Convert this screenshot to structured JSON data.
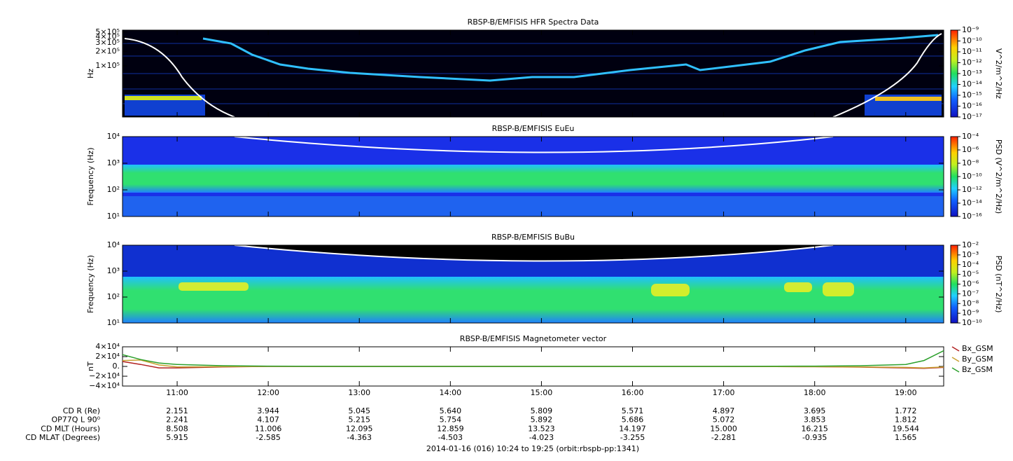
{
  "chart_data": [
    {
      "type": "spectrogram",
      "title": "RBSP-B/EMFISIS  HFR Spectra Data",
      "ylabel": "Hz",
      "ylog": true,
      "ylim": [
        8700,
        550000
      ],
      "yticks": [
        {
          "value": 500000,
          "label": "5×10⁵"
        },
        {
          "value": 400000,
          "label": "4×10⁵"
        },
        {
          "value": 300000,
          "label": "3×10⁵"
        },
        {
          "value": 200000,
          "label": "2×10⁵"
        },
        {
          "value": 100000,
          "label": "1×10⁵"
        }
      ],
      "zlabel": "V^2/m^2/Hz",
      "zlog": true,
      "zlim": [
        1e-17,
        1e-09
      ],
      "zticks": [
        {
          "value": 1e-09,
          "label": "10⁻⁹"
        },
        {
          "value": 1e-10,
          "label": "10⁻¹⁰"
        },
        {
          "value": 1e-11,
          "label": "10⁻¹¹"
        },
        {
          "value": 1e-12,
          "label": "10⁻¹²"
        },
        {
          "value": 1e-13,
          "label": "10⁻¹³"
        },
        {
          "value": 1e-14,
          "label": "10⁻¹⁴"
        },
        {
          "value": 1e-15,
          "label": "10⁻¹⁵"
        },
        {
          "value": 1e-16,
          "label": "10⁻¹⁶"
        },
        {
          "value": 1e-17,
          "label": "10⁻¹⁷"
        }
      ]
    },
    {
      "type": "spectrogram",
      "title": "RBSP-B/EMFISIS  EuEu",
      "ylabel": "Frequency (Hz)",
      "ylog": true,
      "ylim": [
        10,
        10000
      ],
      "yticks": [
        {
          "value": 10000,
          "label": "10⁴"
        },
        {
          "value": 1000,
          "label": "10³"
        },
        {
          "value": 100,
          "label": "10²"
        },
        {
          "value": 10,
          "label": "10¹"
        }
      ],
      "zlabel": "PSD (V^2/m^2/Hz)",
      "zlog": true,
      "zlim": [
        1e-16,
        0.0001
      ],
      "zticks": [
        {
          "value": 0.0001,
          "label": "10⁻⁴"
        },
        {
          "value": 1e-06,
          "label": "10⁻⁶"
        },
        {
          "value": 1e-08,
          "label": "10⁻⁸"
        },
        {
          "value": 1e-10,
          "label": "10⁻¹⁰"
        },
        {
          "value": 1e-12,
          "label": "10⁻¹²"
        },
        {
          "value": 1e-14,
          "label": "10⁻¹⁴"
        },
        {
          "value": 1e-16,
          "label": "10⁻¹⁶"
        }
      ]
    },
    {
      "type": "spectrogram",
      "title": "RBSP-B/EMFISIS  BuBu",
      "ylabel": "Frequency (Hz)",
      "ylog": true,
      "ylim": [
        10,
        10000
      ],
      "yticks": [
        {
          "value": 10000,
          "label": "10⁴"
        },
        {
          "value": 1000,
          "label": "10³"
        },
        {
          "value": 100,
          "label": "10²"
        },
        {
          "value": 10,
          "label": "10¹"
        }
      ],
      "zlabel": "PSD (nT^2/Hz)",
      "zlog": true,
      "zlim": [
        1e-10,
        0.01
      ],
      "zticks": [
        {
          "value": 0.01,
          "label": "10⁻²"
        },
        {
          "value": 0.001,
          "label": "10⁻³"
        },
        {
          "value": 0.0001,
          "label": "10⁻⁴"
        },
        {
          "value": 1e-05,
          "label": "10⁻⁵"
        },
        {
          "value": 1e-06,
          "label": "10⁻⁶"
        },
        {
          "value": 1e-07,
          "label": "10⁻⁷"
        },
        {
          "value": 1e-08,
          "label": "10⁻⁸"
        },
        {
          "value": 1e-09,
          "label": "10⁻⁹"
        },
        {
          "value": 1e-10,
          "label": "10⁻¹⁰"
        }
      ]
    },
    {
      "type": "line",
      "title": "RBSP-B/EMFISIS  Magnetometer vector",
      "ylabel": "nT",
      "xlim": [
        10.4,
        19.4167
      ],
      "xticks": [
        {
          "value": 11,
          "label": "11:00"
        },
        {
          "value": 12,
          "label": "12:00"
        },
        {
          "value": 13,
          "label": "13:00"
        },
        {
          "value": 14,
          "label": "14:00"
        },
        {
          "value": 15,
          "label": "15:00"
        },
        {
          "value": 16,
          "label": "16:00"
        },
        {
          "value": 17,
          "label": "17:00"
        },
        {
          "value": 18,
          "label": "18:00"
        },
        {
          "value": 19,
          "label": "19:00"
        }
      ],
      "ylim": [
        -40000,
        40000
      ],
      "yticks": [
        {
          "value": 40000,
          "label": "4×10⁴"
        },
        {
          "value": 20000,
          "label": "2×10⁴"
        },
        {
          "value": 0,
          "label": "0."
        },
        {
          "value": -20000,
          "label": "−2×10⁴"
        },
        {
          "value": -40000,
          "label": "−4×10⁴"
        }
      ],
      "x": [
        10.4,
        10.6,
        10.8,
        11,
        11.5,
        12,
        13,
        14,
        15,
        16,
        17,
        18,
        18.5,
        19,
        19.2,
        19.4167
      ],
      "series": [
        {
          "name": "Bx_GSM",
          "color": "#b22222",
          "values": [
            10000,
            4000,
            -3000,
            -3000,
            -1000,
            0,
            0,
            0,
            0,
            0,
            0,
            -500,
            -1500,
            -3000,
            -4000,
            -2000
          ]
        },
        {
          "name": "By_GSM",
          "color": "#c8a030",
          "values": [
            12000,
            13000,
            3000,
            -1000,
            -500,
            0,
            0,
            0,
            0,
            0,
            0,
            -500,
            -1000,
            -2000,
            -3000,
            -1000
          ]
        },
        {
          "name": "Bz_GSM",
          "color": "#2ca02c",
          "values": [
            24000,
            14000,
            7000,
            4000,
            1500,
            500,
            0,
            0,
            0,
            0,
            0,
            500,
            1500,
            4000,
            12000,
            32000
          ]
        }
      ]
    }
  ],
  "ephemeris": {
    "rows": [
      {
        "label": "CD R (Re)",
        "values": [
          "2.151",
          "3.944",
          "5.045",
          "5.640",
          "5.809",
          "5.571",
          "4.897",
          "3.695",
          "1.772"
        ]
      },
      {
        "label": "OP77Q L 90⁰",
        "values": [
          "2.241",
          "4.107",
          "5.215",
          "5.754",
          "5.892",
          "5.686",
          "5.072",
          "3.853",
          "1.812"
        ]
      },
      {
        "label": "CD MLT (Hours)",
        "values": [
          "8.508",
          "11.006",
          "12.095",
          "12.859",
          "13.523",
          "14.197",
          "15.000",
          "16.215",
          "19.544"
        ]
      },
      {
        "label": "CD MLAT (Degrees)",
        "values": [
          "5.915",
          "-2.585",
          "-4.363",
          "-4.503",
          "-4.023",
          "-3.255",
          "-2.281",
          "-0.935",
          "1.565"
        ]
      }
    ]
  },
  "footer": "2014-01-16 (016) 10:24 to 19:25 (orbit:rbspb-pp:1341)"
}
